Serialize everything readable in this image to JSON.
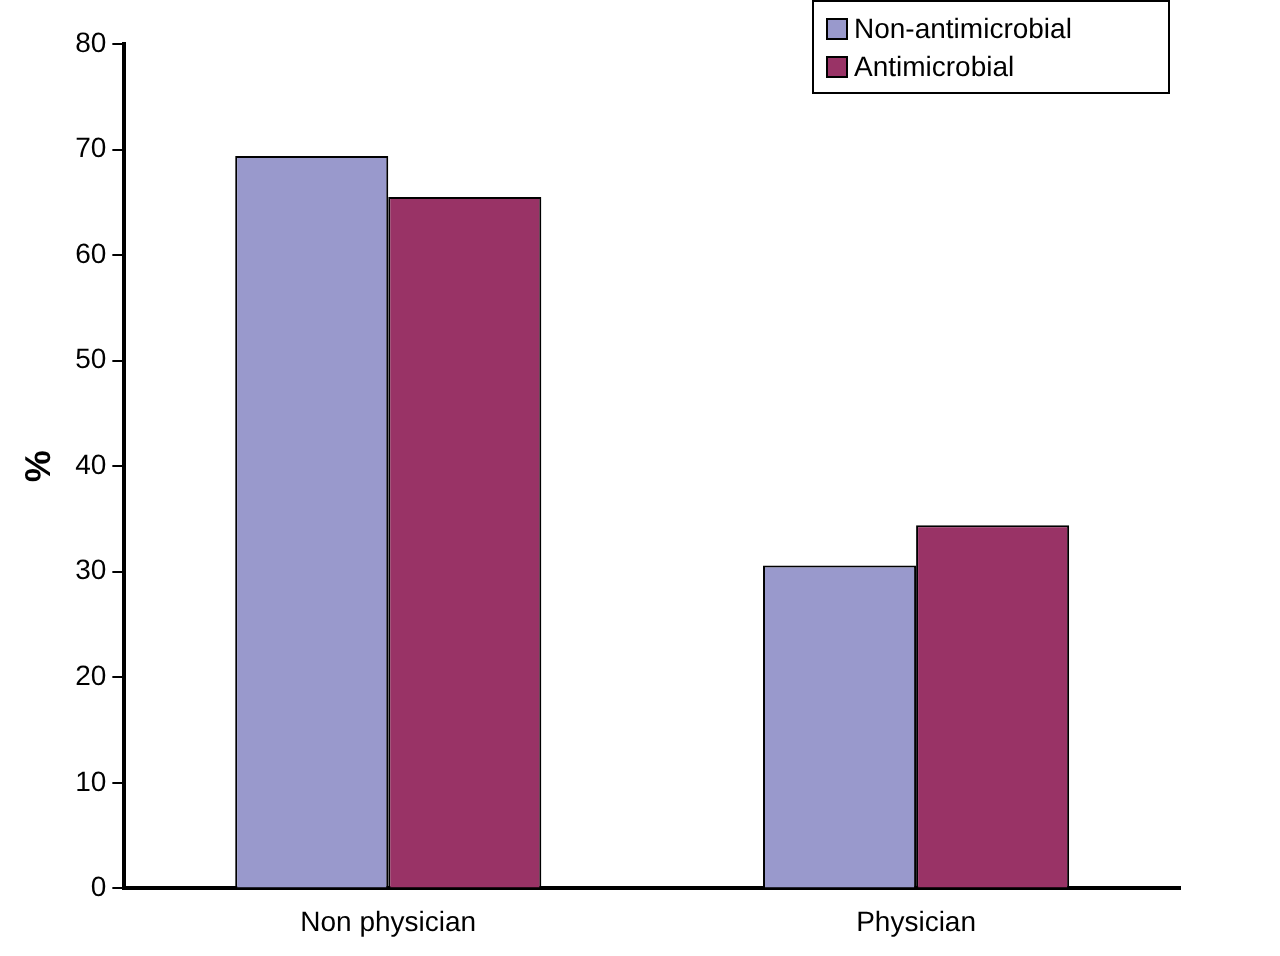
{
  "chart_data": {
    "type": "bar",
    "ylabel": "%",
    "categories": [
      "Non physician",
      "Physician"
    ],
    "series": [
      {
        "name": "Non-antimicrobial",
        "color": "#9999cc",
        "values": [
          69.4,
          30.6
        ]
      },
      {
        "name": "Antimicrobial",
        "color": "#993366",
        "values": [
          65.5,
          34.4
        ]
      }
    ],
    "ylim": [
      0,
      80
    ],
    "yticks": [
      0,
      10,
      20,
      30,
      40,
      50,
      60,
      70,
      80
    ],
    "grid": false,
    "legend": "top right"
  }
}
